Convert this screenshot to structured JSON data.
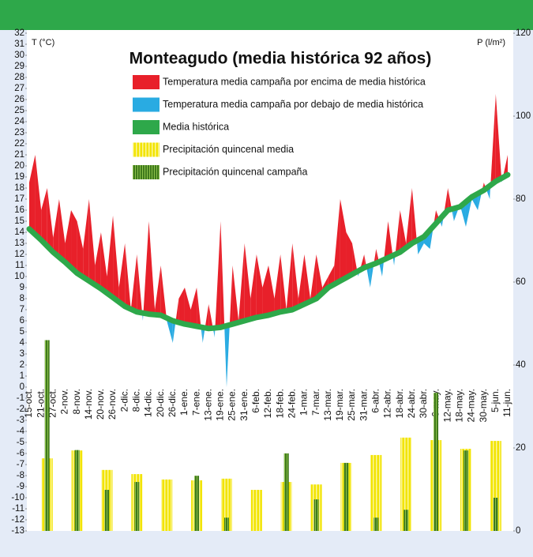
{
  "chart_data": {
    "type": "temperature-precipitation",
    "title": "Monteagudo (media histórica 92 años)",
    "y_label": "T (°C)",
    "y2_label": "P (l/m²)",
    "categories": [
      "15-oct.",
      null,
      "21-oct.",
      null,
      "27-oct.",
      null,
      "2-nov.",
      null,
      "8-nov.",
      null,
      "14-nov.",
      null,
      "20-nov.",
      null,
      "26-nov.",
      null,
      "2-dic.",
      null,
      "8-dic.",
      null,
      "14-dic.",
      null,
      "20-dic.",
      null,
      "26-dic.",
      null,
      "1-ene.",
      null,
      "7-ene.",
      null,
      "13-ene.",
      null,
      "19-ene.",
      null,
      "25-ene.",
      null,
      "31-ene.",
      null,
      "6-feb.",
      null,
      "12-feb.",
      null,
      "18-feb.",
      null,
      "24-feb.",
      null,
      "1-mar.",
      null,
      "7-mar.",
      null,
      "13-mar.",
      null,
      "19-mar.",
      null,
      "25-mar.",
      null,
      "31-mar.",
      null,
      "6-abr.",
      null,
      "12-abr.",
      null,
      "18-abr.",
      null,
      "24-abr.",
      null,
      "30-abr.",
      null,
      "6-may.",
      null,
      "12-may.",
      null,
      "18-may.",
      null,
      "24-may.",
      null,
      "30-may.",
      null,
      "5-jun.",
      null,
      "11-jun."
    ],
    "campaign": {
      "above": {
        "name": "Temperatura media campaña por encima de media histórica",
        "color": "#e8202a"
      },
      "below": {
        "name": "Temperatura media campaña por debajo de media histórica",
        "color": "#29abe2"
      },
      "values": [
        18.5,
        21,
        16,
        18,
        13.5,
        17,
        13,
        16,
        15,
        12.5,
        17,
        11,
        14,
        10,
        15.5,
        9,
        13,
        7,
        12,
        6,
        15,
        7,
        11,
        6,
        4,
        8,
        9,
        7,
        9,
        4,
        7.5,
        4.5,
        15,
        0,
        11,
        6,
        13,
        8,
        12,
        9,
        11,
        8,
        12,
        7,
        13,
        8,
        12,
        8,
        12,
        9,
        10,
        11,
        17,
        14,
        13,
        10,
        12,
        9,
        12.5,
        10,
        15,
        11,
        16,
        13,
        18,
        12,
        13,
        12.5,
        16,
        14.5,
        18,
        15,
        16.5,
        14.5,
        17,
        16,
        18.5,
        17,
        26.5,
        18.5,
        21
      ]
    },
    "series": [
      {
        "name": "Media histórica",
        "color": "#2ea84a",
        "values": [
          14.3,
          13.8,
          13.3,
          12.75,
          12.2,
          11.75,
          11.3,
          10.8,
          10.3,
          9.95,
          9.6,
          9.25,
          8.9,
          8.5,
          8.1,
          7.7,
          7.3,
          7.05,
          6.8,
          6.7,
          6.6,
          6.55,
          6.5,
          6.25,
          6.0,
          5.85,
          5.7,
          5.6,
          5.5,
          5.4,
          5.3,
          5.35,
          5.4,
          5.55,
          5.7,
          5.85,
          6.0,
          6.15,
          6.3,
          6.4,
          6.5,
          6.65,
          6.8,
          6.9,
          7.0,
          7.25,
          7.5,
          7.75,
          8.0,
          8.5,
          9.0,
          9.3,
          9.6,
          9.9,
          10.2,
          10.5,
          10.8,
          11.0,
          11.2,
          11.45,
          11.7,
          11.95,
          12.2,
          12.6,
          13.0,
          13.3,
          13.6,
          14.2,
          14.8,
          15.4,
          16.0,
          16.15,
          16.3,
          16.75,
          17.2,
          17.5,
          17.8,
          18.2,
          18.6,
          18.9,
          19.2
        ]
      },
      {
        "name": "Precipitación quincenal media",
        "color": "#f2e400",
        "axis": "y2",
        "values": [
          null,
          null,
          null,
          17.5,
          null,
          null,
          null,
          null,
          19.4,
          null,
          null,
          null,
          null,
          14.7,
          null,
          null,
          null,
          null,
          13.7,
          null,
          null,
          null,
          null,
          12.4,
          null,
          null,
          null,
          null,
          12.2,
          null,
          null,
          null,
          null,
          12.6,
          null,
          null,
          null,
          null,
          9.9,
          null,
          null,
          null,
          null,
          11.8,
          null,
          null,
          null,
          null,
          11.2,
          null,
          null,
          null,
          null,
          16.4,
          null,
          null,
          null,
          null,
          18.3,
          null,
          null,
          null,
          null,
          22.5,
          null,
          null,
          null,
          null,
          21.9,
          null,
          null,
          null,
          null,
          19.8,
          null,
          null,
          null,
          null,
          21.7,
          null,
          null
        ]
      },
      {
        "name": "Precipitación quincenal campaña",
        "color": "#3f7a1c",
        "axis": "y2",
        "values": [
          null,
          null,
          null,
          46,
          null,
          null,
          null,
          null,
          19.5,
          null,
          null,
          null,
          null,
          9.9,
          null,
          null,
          null,
          null,
          11.8,
          null,
          null,
          null,
          null,
          0,
          null,
          null,
          null,
          null,
          13.3,
          null,
          null,
          null,
          null,
          3.2,
          null,
          null,
          null,
          null,
          0,
          null,
          null,
          null,
          null,
          18.7,
          null,
          null,
          null,
          null,
          7.6,
          null,
          null,
          null,
          null,
          16.4,
          null,
          null,
          null,
          null,
          3.2,
          null,
          null,
          null,
          null,
          5.1,
          null,
          null,
          null,
          null,
          33.3,
          null,
          null,
          null,
          null,
          19.4,
          null,
          null,
          null,
          null,
          8,
          null,
          null
        ]
      }
    ],
    "ylim": [
      -13,
      32
    ],
    "yticks": [
      -13,
      -12,
      -11,
      -10,
      -9,
      -8,
      -7,
      -6,
      -5,
      -4,
      -3,
      -2,
      -1,
      0,
      1,
      2,
      3,
      4,
      5,
      6,
      7,
      8,
      9,
      10,
      11,
      12,
      13,
      14,
      15,
      16,
      17,
      18,
      19,
      20,
      21,
      22,
      23,
      24,
      25,
      26,
      27,
      28,
      29,
      30,
      31,
      32
    ],
    "y2lim": [
      0,
      120
    ],
    "y2ticks": [
      0,
      20,
      40,
      60,
      80,
      100,
      120
    ],
    "header_color": "#2ea84a"
  }
}
